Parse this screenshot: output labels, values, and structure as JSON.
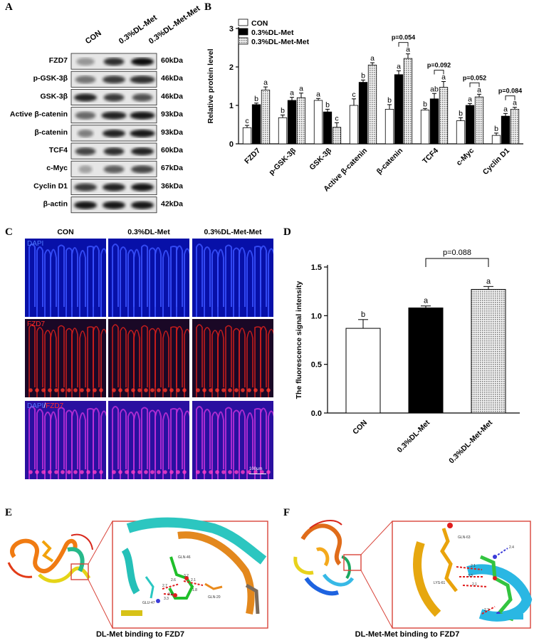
{
  "panels": {
    "A": "A",
    "B": "B",
    "C": "C",
    "D": "D",
    "E": "E",
    "F": "F"
  },
  "western": {
    "groups": [
      "CON",
      "0.3%DL-Met",
      "0.3%DL-Met-Met"
    ],
    "rows": [
      {
        "protein": "FZD7",
        "size": "60kDa"
      },
      {
        "protein": "p-GSK-3β",
        "size": "46kDa"
      },
      {
        "protein": "GSK-3β",
        "size": "46kDa"
      },
      {
        "protein": "Active β-catenin",
        "size": "93kDa"
      },
      {
        "protein": "β-catenin",
        "size": "93kDa"
      },
      {
        "protein": "TCF4",
        "size": "60kDa"
      },
      {
        "protein": "c-Myc",
        "size": "67kDa"
      },
      {
        "protein": "Cyclin D1",
        "size": "36kDa"
      },
      {
        "protein": "β-actin",
        "size": "42kDa"
      }
    ]
  },
  "chart_data": [
    {
      "type": "bar",
      "ylabel": "Relative protein level",
      "ylim": [
        0,
        3
      ],
      "yticks": [
        0,
        1,
        2,
        3
      ],
      "legend_position": "top-left",
      "categories": [
        "FZD7",
        "p-GSK-3β",
        "GSK-3β",
        "Active β-catenin",
        "β-catenin",
        "TCF4",
        "c-Myc",
        "Cyclin D1"
      ],
      "series": [
        {
          "name": "CON",
          "values": [
            0.42,
            0.68,
            1.13,
            1.0,
            0.9,
            0.88,
            0.6,
            0.22
          ],
          "errors": [
            0.06,
            0.07,
            0.05,
            0.17,
            0.12,
            0.04,
            0.08,
            0.06
          ],
          "letters": [
            "c",
            "b",
            "a",
            "c",
            "b",
            "b",
            "b",
            "b"
          ]
        },
        {
          "name": "0.3%DL-Met",
          "values": [
            1.02,
            1.13,
            0.83,
            1.6,
            1.8,
            1.17,
            1.0,
            0.72
          ],
          "errors": [
            0.04,
            0.08,
            0.07,
            0.06,
            0.1,
            0.14,
            0.05,
            0.07
          ],
          "letters": [
            "b",
            "a",
            "b",
            "b",
            "a",
            "ab",
            "a",
            "a"
          ]
        },
        {
          "name": "0.3%DL-Met-Met",
          "values": [
            1.4,
            1.2,
            0.43,
            2.05,
            2.22,
            1.47,
            1.22,
            0.9
          ],
          "errors": [
            0.08,
            0.12,
            0.12,
            0.06,
            0.12,
            0.15,
            0.07,
            0.05
          ],
          "letters": [
            "a",
            "a",
            "c",
            "a",
            "a",
            "a",
            "a",
            "a"
          ]
        }
      ],
      "annotations": [
        {
          "category": "β-catenin",
          "text": "p=0.054"
        },
        {
          "category": "TCF4",
          "text": "p=0.092"
        },
        {
          "category": "c-Myc",
          "text": "p=0.052"
        },
        {
          "category": "Cyclin D1",
          "text": "p=0.084"
        }
      ]
    },
    {
      "type": "bar",
      "ylabel": "The fluorescence signal intensity",
      "ylim": [
        0,
        1.5
      ],
      "yticks": [
        0.0,
        0.5,
        1.0,
        1.5
      ],
      "categories": [
        "CON",
        "0.3%DL-Met",
        "0.3%DL-Met-Met"
      ],
      "values": [
        0.87,
        1.08,
        1.27
      ],
      "errors": [
        0.09,
        0.02,
        0.03
      ],
      "letters": [
        "b",
        "a",
        "a"
      ],
      "annotation": {
        "text": "p=0.088"
      }
    }
  ],
  "micrographs": {
    "columns": [
      "CON",
      "0.3%DL-Met",
      "0.3%DL-Met-Met"
    ],
    "row_labels": [
      [
        {
          "text": "DAPI",
          "color": "#4f7bff"
        }
      ],
      [
        {
          "text": "FZD7",
          "color": "#ff2a2a"
        }
      ],
      [
        {
          "text": "DAPI",
          "color": "#4f7bff"
        },
        {
          "text": "/",
          "color": "#ffffff"
        },
        {
          "text": "FZD7",
          "color": "#ff2a2a"
        }
      ]
    ],
    "scale_bar": "100μm"
  },
  "docking": {
    "E": {
      "caption": "DL-Met binding to FZD7",
      "residues": [
        "GLN-46",
        "GLU-47",
        "GLN-20"
      ],
      "distances": [
        "2.6",
        "3.2",
        "2.1",
        "1.8",
        "3.4",
        "2.7",
        "3.3"
      ]
    },
    "F": {
      "caption": "DL-Met-Met binding to FZD7",
      "residues": [
        "GLN-63",
        "LYS-61"
      ],
      "distances": [
        "2.4",
        "2.1",
        "3.3",
        "2.1",
        "2.2"
      ]
    }
  }
}
